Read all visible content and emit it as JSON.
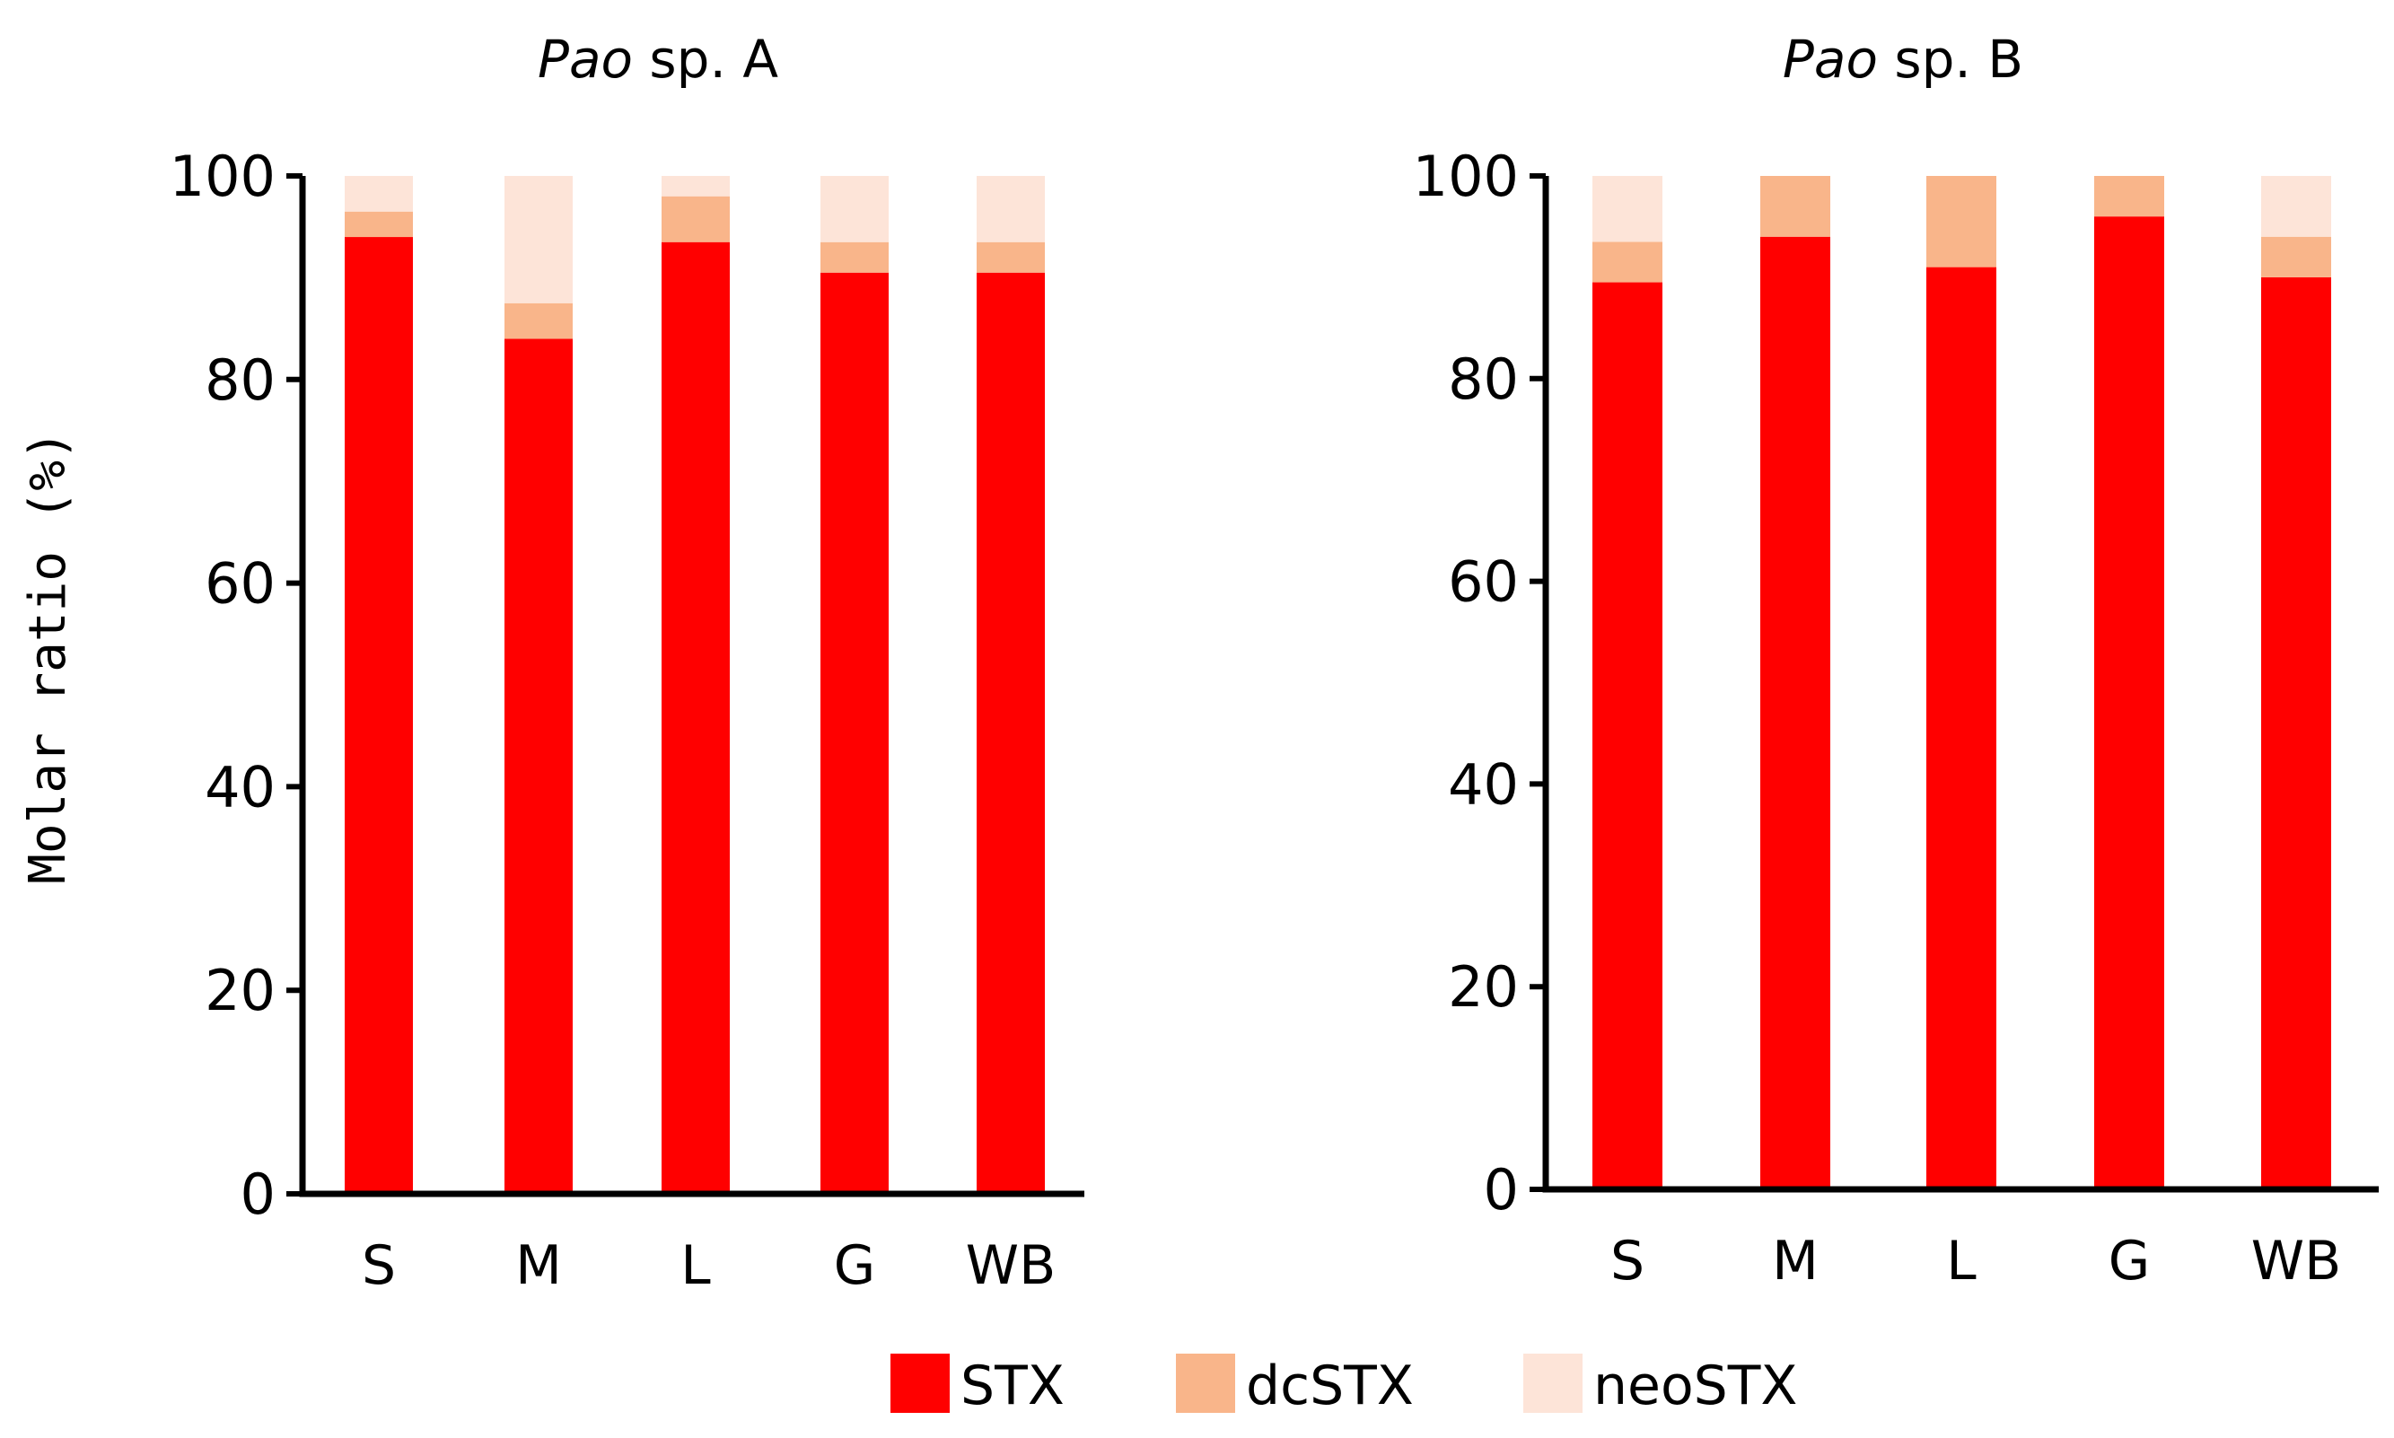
{
  "chart_data": [
    {
      "type": "bar",
      "stacked": true,
      "title_italic": "Pao",
      "title_rest": " sp. A",
      "categories": [
        "S",
        "M",
        "L",
        "G",
        "WB"
      ],
      "ylabel": "Molar ratio (%)",
      "ylim": [
        0,
        100
      ],
      "yticks": [
        "0",
        "20",
        "40",
        "60",
        "80",
        "100"
      ],
      "series": [
        {
          "name": "STX",
          "values": [
            94,
            84,
            93.5,
            90.5,
            90.5
          ]
        },
        {
          "name": "dcSTX",
          "values": [
            2.5,
            3.5,
            4.5,
            3,
            3
          ]
        },
        {
          "name": "neoSTX",
          "values": [
            3.5,
            12.5,
            2,
            6.5,
            6.5
          ]
        }
      ]
    },
    {
      "type": "bar",
      "stacked": true,
      "title_italic": "Pao",
      "title_rest": " sp. B",
      "categories": [
        "S",
        "M",
        "L",
        "G",
        "WB"
      ],
      "ylabel": "",
      "ylim": [
        0,
        100
      ],
      "yticks": [
        "0",
        "20",
        "40",
        "60",
        "80",
        "100"
      ],
      "series": [
        {
          "name": "STX",
          "values": [
            89.5,
            94,
            91,
            96,
            90
          ]
        },
        {
          "name": "dcSTX",
          "values": [
            4,
            6,
            9,
            4,
            4
          ]
        },
        {
          "name": "neoSTX",
          "values": [
            6.5,
            0,
            0,
            0,
            6
          ]
        }
      ]
    }
  ],
  "legend": {
    "items": [
      {
        "label": "STX",
        "color": "#ff0000"
      },
      {
        "label": "dcSTX",
        "color": "#f9b58a"
      },
      {
        "label": "neoSTX",
        "color": "#fde4d8"
      }
    ]
  },
  "colors": {
    "STX": "#ff0000",
    "dcSTX": "#f9b58a",
    "neoSTX": "#fde4d8",
    "axis": "#000000"
  }
}
